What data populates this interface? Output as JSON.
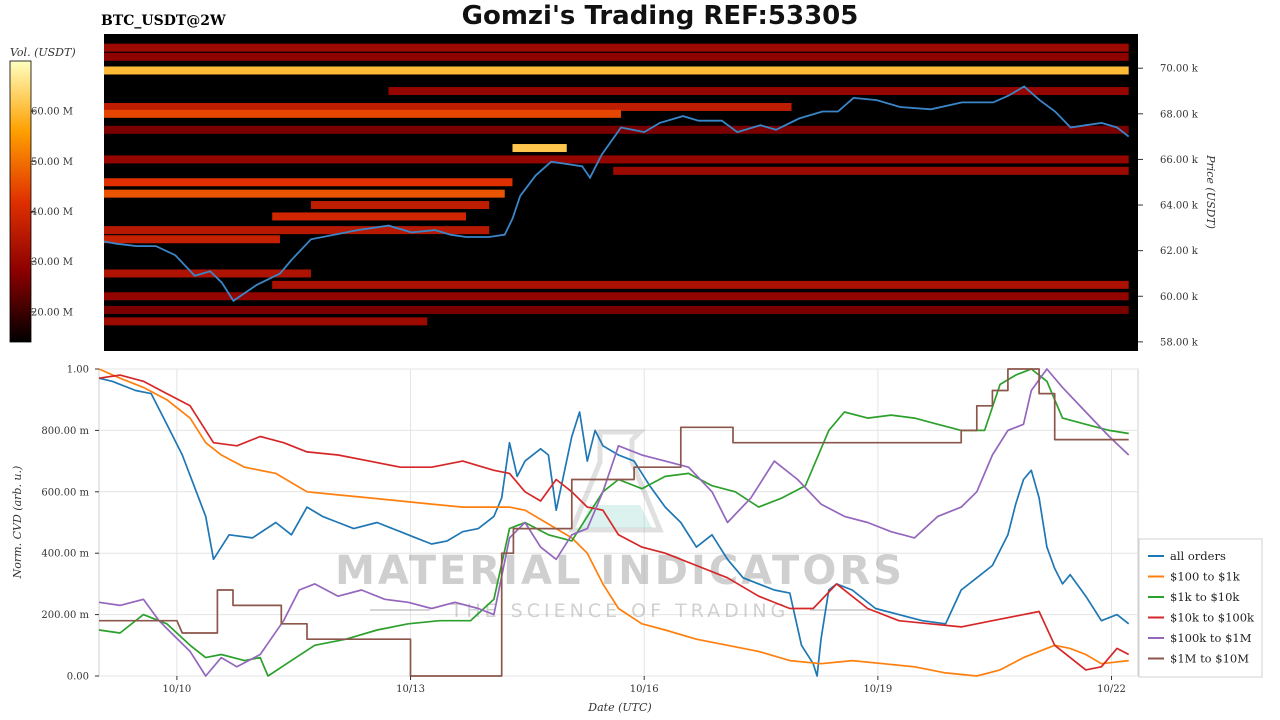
{
  "header": {
    "title": "Gomzi's Trading REF:53305",
    "ticker": "BTC_USDT@2W"
  },
  "watermark": {
    "line1": "MATERIAL INDICATORS",
    "line2": "THE SCIENCE OF TRADING"
  },
  "colors": {
    "all_orders": "#1f77b4",
    "usd100_1k": "#ff7f0e",
    "usd1k_10k": "#2ca02c",
    "usd10k_100k": "#d62728",
    "usd100k_1m": "#9467bd",
    "usd1m_10m": "#8c564b",
    "price_line": "#3a86c8"
  },
  "chart_data": [
    {
      "type": "heatmap",
      "title": "",
      "ylabel": "Price (USDT)",
      "colorbar_label": "Vol. (USDT)",
      "colorbar_ticks": [
        "20.00 M",
        "30.00 M",
        "40.00 M",
        "50.00 M",
        "60.00 M"
      ],
      "colorbar_range": [
        14,
        70
      ],
      "ylim": [
        57.6,
        71.5
      ],
      "y_tick_labels": [
        "58.00 k",
        "60.00 k",
        "62.00 k",
        "64.00 k",
        "66.00 k",
        "68.00 k",
        "70.00 k"
      ],
      "y_tick_values": [
        58,
        60,
        62,
        64,
        66,
        68,
        70
      ],
      "xlim": [
        9.33,
        22.67
      ],
      "price_series": {
        "name": "Price",
        "x": [
          9.33,
          9.5,
          9.75,
          10,
          10.25,
          10.5,
          10.7,
          10.85,
          11,
          11.3,
          11.6,
          11.75,
          12,
          12.3,
          12.6,
          13,
          13.3,
          13.6,
          13.8,
          14,
          14.3,
          14.5,
          14.6,
          14.7,
          14.9,
          15.1,
          15.3,
          15.5,
          15.6,
          15.75,
          16,
          16.3,
          16.5,
          16.8,
          17,
          17.3,
          17.5,
          17.8,
          18,
          18.3,
          18.6,
          18.8,
          19,
          19.3,
          19.6,
          20,
          20.4,
          20.8,
          21,
          21.2,
          21.4,
          21.6,
          21.8,
          22,
          22.2,
          22.4,
          22.55
        ],
        "y": [
          62.4,
          62.3,
          62.2,
          62.2,
          61.8,
          60.9,
          61.1,
          60.6,
          59.8,
          60.5,
          61.0,
          61.6,
          62.5,
          62.7,
          62.9,
          63.1,
          62.8,
          62.9,
          62.7,
          62.6,
          62.6,
          62.7,
          63.4,
          64.4,
          65.3,
          65.9,
          65.8,
          65.7,
          65.2,
          66.2,
          67.4,
          67.2,
          67.6,
          67.9,
          67.7,
          67.7,
          67.2,
          67.5,
          67.3,
          67.8,
          68.1,
          68.1,
          68.7,
          68.6,
          68.3,
          68.2,
          68.5,
          68.5,
          68.8,
          69.2,
          68.6,
          68.1,
          67.4,
          67.5,
          67.6,
          67.4,
          67.0
        ]
      },
      "bands": [
        {
          "price": 70.9,
          "x": [
            9.33,
            22.55
          ],
          "intensity": 0.3
        },
        {
          "price": 70.5,
          "x": [
            9.33,
            22.55
          ],
          "intensity": 0.26
        },
        {
          "price": 69.9,
          "x": [
            9.33,
            22.55
          ],
          "intensity": 0.82
        },
        {
          "price": 69.0,
          "x": [
            13.0,
            22.55
          ],
          "intensity": 0.28
        },
        {
          "price": 68.3,
          "x": [
            9.33,
            18.2
          ],
          "intensity": 0.4
        },
        {
          "price": 68.0,
          "x": [
            9.33,
            16.0
          ],
          "intensity": 0.55
        },
        {
          "price": 67.3,
          "x": [
            9.33,
            22.55
          ],
          "intensity": 0.22
        },
        {
          "price": 66.5,
          "x": [
            14.6,
            15.3
          ],
          "intensity": 0.85
        },
        {
          "price": 66.0,
          "x": [
            9.33,
            22.55
          ],
          "intensity": 0.28
        },
        {
          "price": 65.5,
          "x": [
            15.9,
            22.55
          ],
          "intensity": 0.3
        },
        {
          "price": 65.0,
          "x": [
            9.33,
            14.6
          ],
          "intensity": 0.5
        },
        {
          "price": 64.5,
          "x": [
            9.33,
            14.5
          ],
          "intensity": 0.58
        },
        {
          "price": 64.0,
          "x": [
            12.0,
            14.3
          ],
          "intensity": 0.4
        },
        {
          "price": 63.5,
          "x": [
            11.5,
            14.0
          ],
          "intensity": 0.45
        },
        {
          "price": 62.9,
          "x": [
            9.33,
            14.3
          ],
          "intensity": 0.38
        },
        {
          "price": 62.5,
          "x": [
            9.33,
            11.6
          ],
          "intensity": 0.42
        },
        {
          "price": 61.0,
          "x": [
            9.33,
            12.0
          ],
          "intensity": 0.35
        },
        {
          "price": 60.5,
          "x": [
            11.5,
            22.55
          ],
          "intensity": 0.34
        },
        {
          "price": 60.0,
          "x": [
            9.33,
            22.55
          ],
          "intensity": 0.27
        },
        {
          "price": 59.4,
          "x": [
            9.33,
            22.55
          ],
          "intensity": 0.22
        },
        {
          "price": 58.9,
          "x": [
            9.33,
            13.5
          ],
          "intensity": 0.3
        }
      ]
    },
    {
      "type": "line",
      "title": "",
      "xlabel": "Date (UTC)",
      "ylabel": "Norm. CVD (arb. u.)",
      "ylim": [
        0,
        1
      ],
      "xlim": [
        9.33,
        22.67
      ],
      "y_tick_labels": [
        "0.00",
        "200.00 m",
        "400.00 m",
        "600.00 m",
        "800.00 m",
        "1.00"
      ],
      "y_tick_values": [
        0,
        0.2,
        0.4,
        0.6,
        0.8,
        1.0
      ],
      "x_tick_labels": [
        "10/10",
        "10/13",
        "10/16",
        "10/19",
        "10/22"
      ],
      "x_tick_values": [
        10.33,
        13.33,
        16.33,
        19.33,
        22.33
      ],
      "legend_position": "right",
      "series": [
        {
          "name": "all orders",
          "key": "all_orders",
          "x": [
            9.33,
            9.5,
            9.8,
            10,
            10.2,
            10.4,
            10.55,
            10.7,
            10.8,
            11,
            11.3,
            11.6,
            11.8,
            12,
            12.2,
            12.4,
            12.6,
            12.9,
            13.2,
            13.4,
            13.6,
            13.8,
            14,
            14.2,
            14.4,
            14.5,
            14.6,
            14.7,
            14.8,
            15,
            15.1,
            15.2,
            15.3,
            15.4,
            15.5,
            15.6,
            15.7,
            15.8,
            16,
            16.2,
            16.4,
            16.6,
            16.8,
            17,
            17.2,
            17.4,
            17.6,
            17.8,
            18,
            18.2,
            18.35,
            18.5,
            18.55,
            18.6,
            18.7,
            18.8,
            19,
            19.3,
            19.6,
            19.9,
            20.2,
            20.4,
            20.6,
            20.8,
            21,
            21.1,
            21.2,
            21.3,
            21.4,
            21.5,
            21.6,
            21.7,
            21.8,
            22,
            22.2,
            22.4,
            22.55
          ],
          "y": [
            0.97,
            0.96,
            0.93,
            0.92,
            0.82,
            0.72,
            0.62,
            0.52,
            0.38,
            0.46,
            0.45,
            0.5,
            0.46,
            0.55,
            0.52,
            0.5,
            0.48,
            0.5,
            0.47,
            0.45,
            0.43,
            0.44,
            0.47,
            0.48,
            0.52,
            0.58,
            0.76,
            0.65,
            0.7,
            0.74,
            0.72,
            0.54,
            0.66,
            0.78,
            0.86,
            0.7,
            0.8,
            0.75,
            0.72,
            0.7,
            0.62,
            0.55,
            0.5,
            0.42,
            0.46,
            0.38,
            0.32,
            0.3,
            0.28,
            0.27,
            0.1,
            0.04,
            0.0,
            0.12,
            0.28,
            0.3,
            0.28,
            0.22,
            0.2,
            0.18,
            0.17,
            0.28,
            0.32,
            0.36,
            0.46,
            0.56,
            0.64,
            0.67,
            0.58,
            0.42,
            0.35,
            0.3,
            0.33,
            0.26,
            0.18,
            0.2,
            0.17
          ]
        },
        {
          "name": "$100 to $1k",
          "key": "usd100_1k",
          "x": [
            9.33,
            9.6,
            9.9,
            10.2,
            10.5,
            10.7,
            10.9,
            11.2,
            11.6,
            12,
            12.4,
            12.8,
            13.2,
            13.6,
            14,
            14.4,
            14.6,
            14.8,
            15,
            15.2,
            15.4,
            15.6,
            15.8,
            16,
            16.3,
            16.6,
            17,
            17.4,
            17.8,
            18.2,
            18.6,
            19,
            19.4,
            19.8,
            20.2,
            20.6,
            20.9,
            21.2,
            21.4,
            21.6,
            21.8,
            22,
            22.2,
            22.55
          ],
          "y": [
            1.0,
            0.97,
            0.94,
            0.9,
            0.84,
            0.76,
            0.72,
            0.68,
            0.66,
            0.6,
            0.59,
            0.58,
            0.57,
            0.56,
            0.55,
            0.55,
            0.55,
            0.54,
            0.51,
            0.48,
            0.45,
            0.4,
            0.3,
            0.22,
            0.17,
            0.15,
            0.12,
            0.1,
            0.08,
            0.05,
            0.04,
            0.05,
            0.04,
            0.03,
            0.01,
            0.0,
            0.02,
            0.06,
            0.08,
            0.1,
            0.09,
            0.07,
            0.04,
            0.05
          ]
        },
        {
          "name": "$1k to $10k",
          "key": "usd1k_10k",
          "x": [
            9.33,
            9.6,
            9.9,
            10.2,
            10.5,
            10.7,
            10.9,
            11.2,
            11.4,
            11.5,
            11.8,
            12.1,
            12.5,
            12.9,
            13.3,
            13.7,
            14.1,
            14.4,
            14.6,
            14.8,
            15.1,
            15.4,
            15.6,
            15.8,
            16,
            16.3,
            16.6,
            16.9,
            17.2,
            17.5,
            17.8,
            18.1,
            18.4,
            18.7,
            18.9,
            19.2,
            19.5,
            19.8,
            20.1,
            20.4,
            20.7,
            20.9,
            21.1,
            21.3,
            21.5,
            21.7,
            22,
            22.3,
            22.55
          ],
          "y": [
            0.15,
            0.14,
            0.2,
            0.17,
            0.1,
            0.06,
            0.07,
            0.05,
            0.06,
            0.0,
            0.05,
            0.1,
            0.12,
            0.15,
            0.17,
            0.18,
            0.18,
            0.25,
            0.48,
            0.5,
            0.46,
            0.44,
            0.52,
            0.6,
            0.64,
            0.61,
            0.65,
            0.66,
            0.62,
            0.6,
            0.55,
            0.58,
            0.62,
            0.8,
            0.86,
            0.84,
            0.85,
            0.84,
            0.82,
            0.8,
            0.8,
            0.95,
            0.98,
            1.0,
            0.96,
            0.84,
            0.82,
            0.8,
            0.79
          ]
        },
        {
          "name": "$10k to $100k",
          "key": "usd10k_100k",
          "x": [
            9.33,
            9.6,
            9.9,
            10.2,
            10.5,
            10.8,
            11.1,
            11.4,
            11.7,
            12,
            12.4,
            12.8,
            13.2,
            13.6,
            14,
            14.4,
            14.6,
            14.8,
            15,
            15.2,
            15.4,
            15.6,
            15.8,
            16,
            16.3,
            16.6,
            17,
            17.4,
            17.8,
            18.2,
            18.5,
            18.8,
            19.2,
            19.6,
            20,
            20.4,
            20.8,
            21.2,
            21.4,
            21.6,
            21.8,
            22,
            22.2,
            22.4,
            22.55
          ],
          "y": [
            0.97,
            0.98,
            0.96,
            0.92,
            0.88,
            0.76,
            0.75,
            0.78,
            0.76,
            0.73,
            0.72,
            0.7,
            0.68,
            0.68,
            0.7,
            0.67,
            0.66,
            0.6,
            0.57,
            0.64,
            0.6,
            0.55,
            0.54,
            0.46,
            0.42,
            0.4,
            0.36,
            0.32,
            0.26,
            0.22,
            0.22,
            0.3,
            0.22,
            0.18,
            0.17,
            0.16,
            0.18,
            0.2,
            0.21,
            0.1,
            0.06,
            0.02,
            0.03,
            0.09,
            0.07
          ]
        },
        {
          "name": "$100k to $1M",
          "key": "usd100k_1m",
          "x": [
            9.33,
            9.6,
            9.9,
            10.1,
            10.3,
            10.5,
            10.7,
            10.9,
            11.1,
            11.4,
            11.7,
            11.9,
            12.1,
            12.4,
            12.7,
            13,
            13.3,
            13.6,
            13.9,
            14.2,
            14.4,
            14.6,
            14.8,
            15,
            15.2,
            15.4,
            15.6,
            15.8,
            16,
            16.3,
            16.6,
            16.9,
            17.2,
            17.4,
            17.7,
            18,
            18.3,
            18.6,
            18.9,
            19.2,
            19.5,
            19.8,
            20.1,
            20.4,
            20.6,
            20.8,
            21,
            21.2,
            21.3,
            21.5,
            21.7,
            22,
            22.3,
            22.55
          ],
          "y": [
            0.24,
            0.23,
            0.25,
            0.18,
            0.13,
            0.08,
            0.0,
            0.06,
            0.03,
            0.07,
            0.18,
            0.28,
            0.3,
            0.26,
            0.28,
            0.25,
            0.24,
            0.22,
            0.24,
            0.22,
            0.2,
            0.45,
            0.5,
            0.42,
            0.38,
            0.46,
            0.48,
            0.6,
            0.75,
            0.72,
            0.7,
            0.68,
            0.6,
            0.5,
            0.58,
            0.7,
            0.64,
            0.56,
            0.52,
            0.5,
            0.47,
            0.45,
            0.52,
            0.55,
            0.6,
            0.72,
            0.8,
            0.82,
            0.93,
            1.0,
            0.94,
            0.86,
            0.78,
            0.72
          ]
        },
        {
          "name": "$1M to $10M",
          "key": "usd1m_10m",
          "x": [
            9.33,
            10.33,
            10.4,
            10.85,
            10.85,
            11.05,
            11.05,
            11.67,
            11.67,
            12.0,
            12.0,
            13.33,
            13.33,
            13.35,
            13.35,
            14.5,
            14.5,
            14.65,
            14.65,
            15.4,
            15.4,
            16.2,
            16.2,
            16.8,
            16.8,
            17.47,
            17.47,
            20.4,
            20.4,
            20.6,
            20.6,
            20.8,
            20.8,
            21.0,
            21.0,
            21.4,
            21.4,
            21.6,
            21.6,
            22.55
          ],
          "y": [
            0.18,
            0.18,
            0.14,
            0.14,
            0.28,
            0.28,
            0.23,
            0.23,
            0.17,
            0.17,
            0.12,
            0.12,
            0.0,
            0.0,
            0.0,
            0.0,
            0.4,
            0.4,
            0.48,
            0.48,
            0.64,
            0.64,
            0.68,
            0.68,
            0.81,
            0.81,
            0.76,
            0.76,
            0.8,
            0.8,
            0.88,
            0.88,
            0.93,
            0.93,
            1.0,
            1.0,
            0.92,
            0.92,
            0.77,
            0.77
          ]
        }
      ]
    }
  ]
}
